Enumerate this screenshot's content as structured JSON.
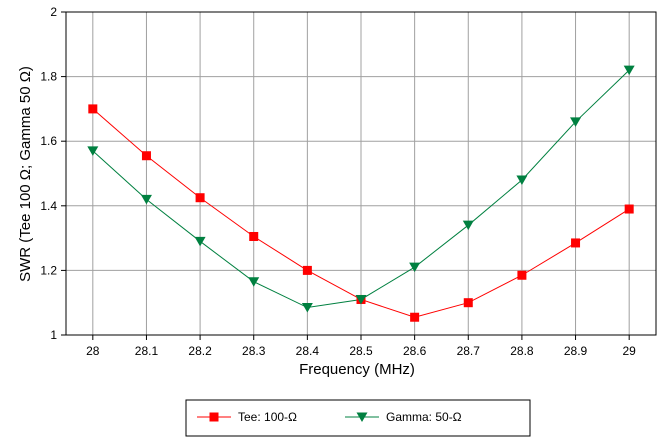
{
  "chart_data": {
    "type": "line",
    "title": "",
    "xlabel": "Frequency (MHz)",
    "ylabel": "SWR (Tee 100 Ω; Gamma 50 Ω)",
    "x": [
      28,
      28.1,
      28.2,
      28.3,
      28.4,
      28.5,
      28.6,
      28.7,
      28.8,
      28.9,
      29
    ],
    "x_tick_labels": [
      "28",
      "28.1",
      "28.2",
      "28.3",
      "28.4",
      "28.5",
      "28.6",
      "28.7",
      "28.8",
      "28.9",
      "29"
    ],
    "xlim": [
      27.95,
      29.05
    ],
    "ylim": [
      1,
      2
    ],
    "y_ticks": [
      1,
      1.2,
      1.4,
      1.6,
      1.8,
      2
    ],
    "y_tick_labels": [
      "1",
      "1.2",
      "1.4",
      "1.6",
      "1.8",
      "2"
    ],
    "grid": true,
    "legend_position": "bottom",
    "series": [
      {
        "name": "Tee: 100-Ω",
        "color": "#ff0000",
        "marker": "square",
        "values": [
          1.7,
          1.555,
          1.425,
          1.305,
          1.2,
          1.11,
          1.055,
          1.1,
          1.185,
          1.285,
          1.39
        ]
      },
      {
        "name": "Gamma: 50-Ω",
        "color": "#008040",
        "marker": "triangle-down",
        "values": [
          1.57,
          1.42,
          1.29,
          1.165,
          1.085,
          1.11,
          1.21,
          1.34,
          1.48,
          1.66,
          1.82
        ]
      }
    ]
  }
}
